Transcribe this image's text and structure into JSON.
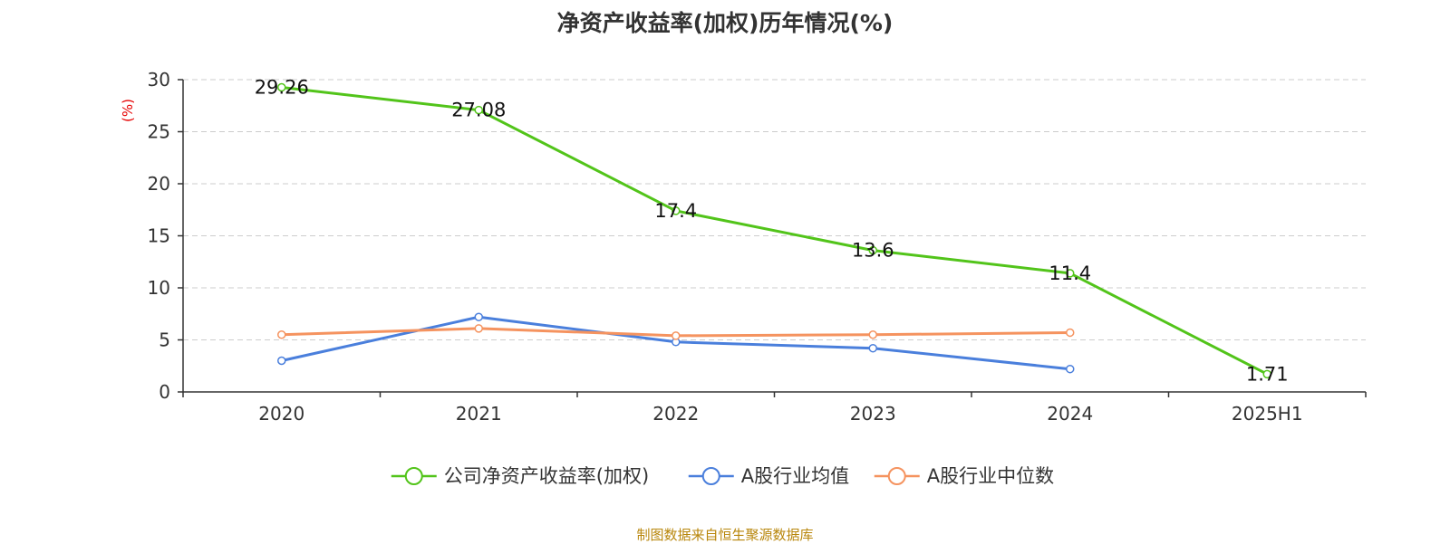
{
  "title": "净资产收益率(加权)历年情况(%)",
  "source": "制图数据来自恒生聚源数据库",
  "chart_data": {
    "type": "line",
    "title": "净资产收益率(加权)历年情况(%)",
    "xlabel": "",
    "ylabel": "(%)",
    "categories": [
      "2020",
      "2021",
      "2022",
      "2023",
      "2024",
      "2025H1"
    ],
    "ylim": [
      0,
      30
    ],
    "yticks": [
      0,
      5,
      10,
      15,
      20,
      25,
      30
    ],
    "grid": true,
    "legend_position": "bottom",
    "series": [
      {
        "name": "公司净资产收益率(加权)",
        "color": "#52c41a",
        "values": [
          29.26,
          27.08,
          17.4,
          13.6,
          11.4,
          1.71
        ],
        "labels": [
          "29.26",
          "27.08",
          "17.4",
          "13.6",
          "11.4",
          "1.71"
        ]
      },
      {
        "name": "A股行业均值",
        "color": "#4a7fdc",
        "values": [
          3.0,
          7.2,
          4.8,
          4.2,
          2.2,
          null
        ]
      },
      {
        "name": "A股行业中位数",
        "color": "#f5935f",
        "values": [
          5.5,
          6.1,
          5.4,
          5.5,
          5.7,
          null
        ]
      }
    ]
  }
}
